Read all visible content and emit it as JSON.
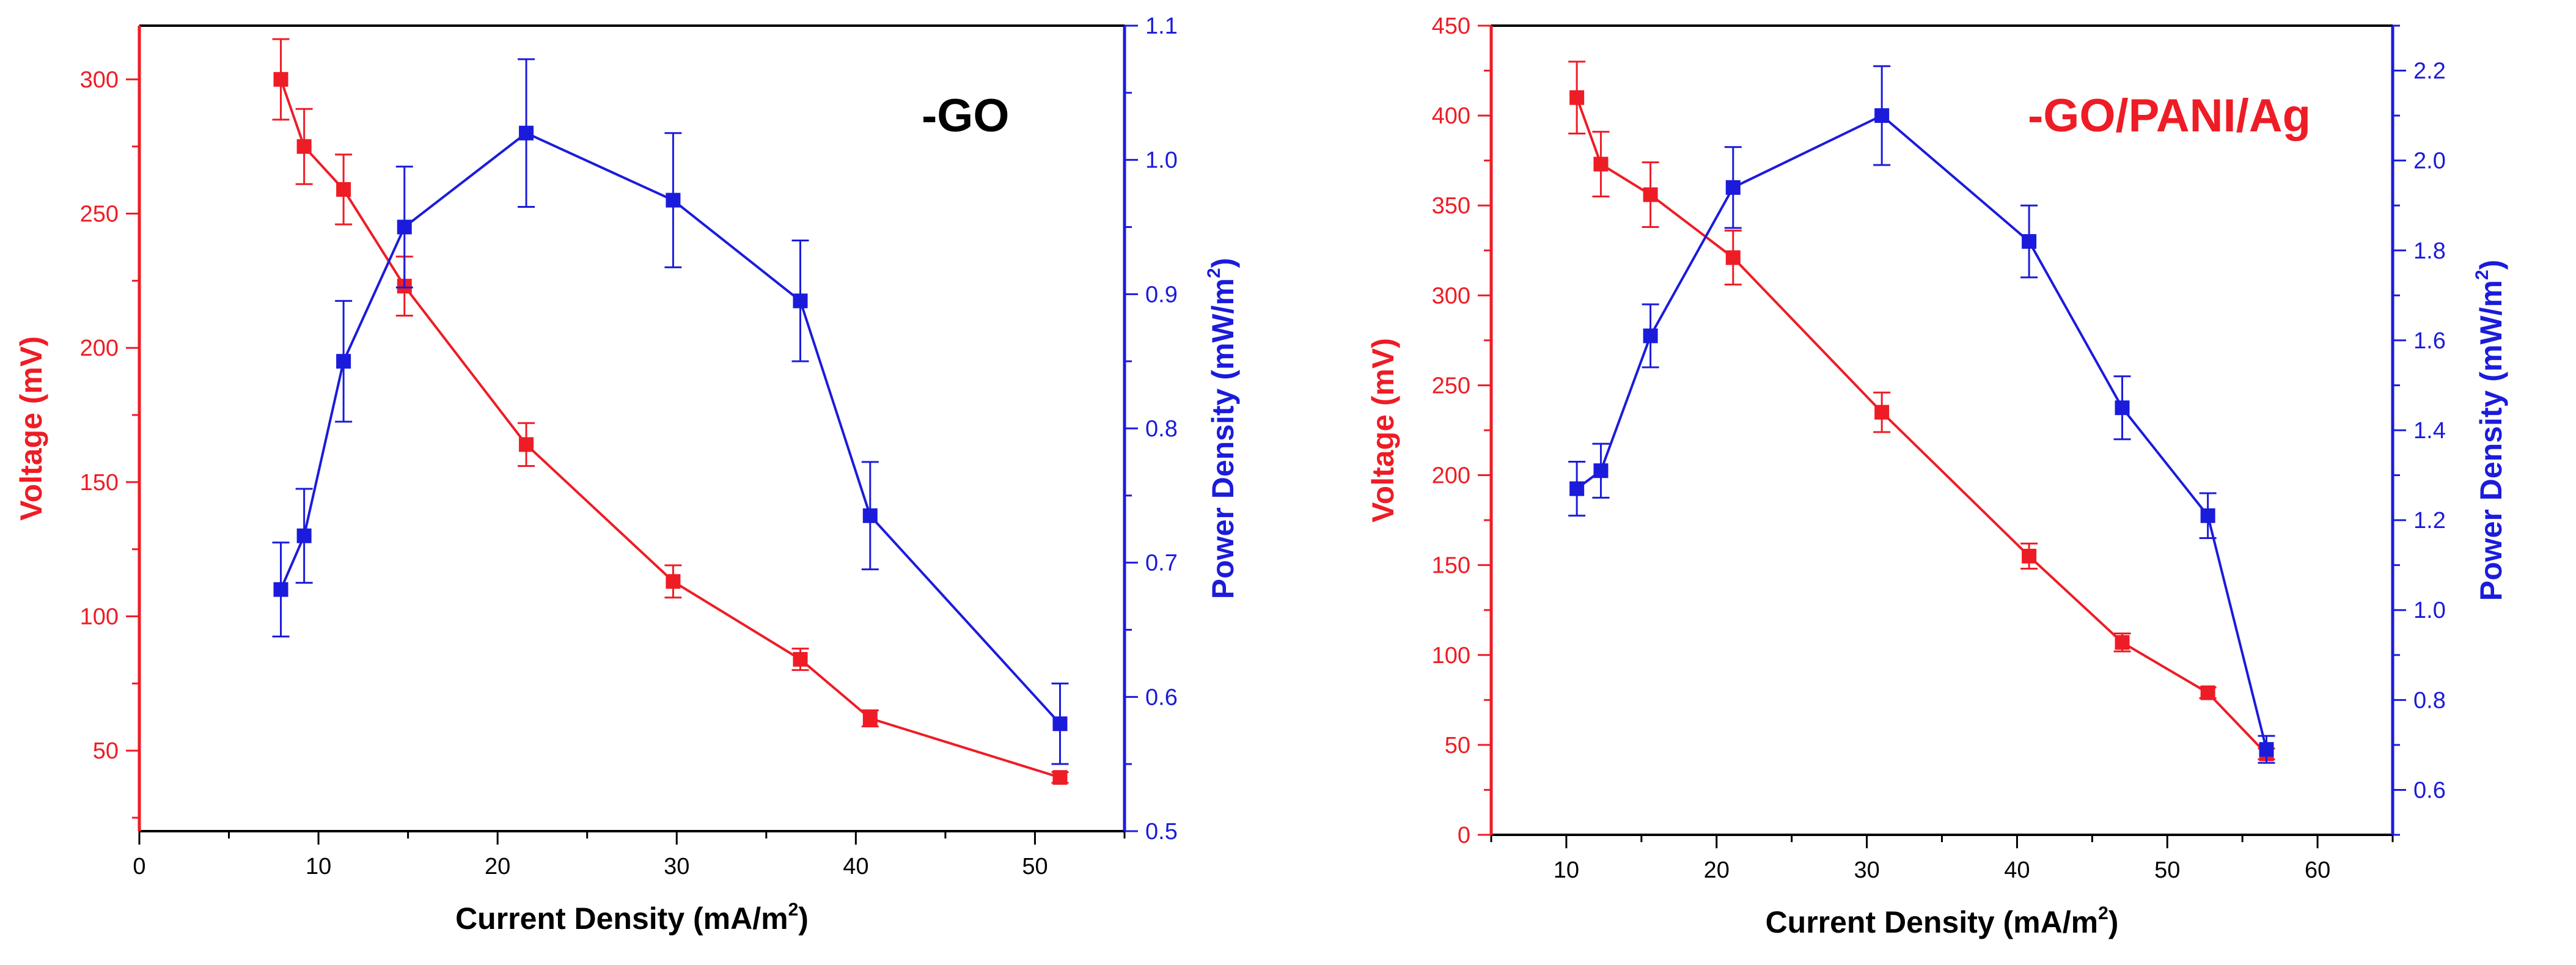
{
  "colors": {
    "voltage": "#ee1c25",
    "power": "#1b1bdc",
    "axis": "#000000"
  },
  "chart_data": [
    {
      "type": "line",
      "title": "-GO",
      "xlabel": "Current Density (mA/m",
      "xlabel_sup": "2",
      "xlabel_close": ")",
      "ylabel_left": "Voltage (mV)",
      "ylabel_right": "Power Density (mW/m",
      "ylabel_right_sup": "2",
      "ylabel_right_close": ")",
      "xlim": [
        0,
        55
      ],
      "ylim_left": [
        20,
        320
      ],
      "ylim_right": [
        0.5,
        1.1
      ],
      "xticks": [
        0,
        10,
        20,
        30,
        40,
        50
      ],
      "yticks_left": [
        50,
        100,
        150,
        200,
        250,
        300
      ],
      "yticks_right": [
        0.5,
        0.6,
        0.7,
        0.8,
        0.9,
        1.0,
        1.1
      ],
      "series": [
        {
          "name": "Voltage",
          "axis": "left",
          "x": [
            7.9,
            9.2,
            11.4,
            14.8,
            21.6,
            29.8,
            36.9,
            40.8,
            51.4
          ],
          "y": [
            300,
            275,
            259,
            223,
            164,
            113,
            84,
            62,
            40
          ],
          "err": [
            15,
            14,
            13,
            11,
            8,
            6,
            4,
            3,
            2
          ]
        },
        {
          "name": "Power Density",
          "axis": "right",
          "x": [
            7.9,
            9.2,
            11.4,
            14.8,
            21.6,
            29.8,
            36.9,
            40.8,
            51.4
          ],
          "y": [
            0.68,
            0.72,
            0.85,
            0.95,
            1.02,
            0.97,
            0.895,
            0.735,
            0.58
          ],
          "err": [
            0.035,
            0.035,
            0.045,
            0.045,
            0.055,
            0.05,
            0.045,
            0.04,
            0.03
          ]
        }
      ]
    },
    {
      "type": "line",
      "title": "-GO/PANI/Ag",
      "xlabel": "Current Density (mA/m",
      "xlabel_sup": "2",
      "xlabel_close": ")",
      "ylabel_left": "Voltage (mV)",
      "ylabel_right": "Power Density (mW/m",
      "ylabel_right_sup": "2",
      "ylabel_right_close": ")",
      "xlim": [
        5,
        65
      ],
      "ylim_left": [
        0,
        450
      ],
      "ylim_right": [
        0.5,
        2.3
      ],
      "xticks": [
        10,
        20,
        30,
        40,
        50,
        60
      ],
      "yticks_left": [
        0,
        50,
        100,
        150,
        200,
        250,
        300,
        350,
        400,
        450
      ],
      "yticks_right": [
        0.6,
        0.8,
        1.0,
        1.2,
        1.4,
        1.6,
        1.8,
        2.0,
        2.2
      ],
      "series": [
        {
          "name": "Voltage",
          "axis": "left",
          "x": [
            10.7,
            12.3,
            15.6,
            21.1,
            31.0,
            40.8,
            47.0,
            52.7,
            56.6
          ],
          "y": [
            410,
            373,
            356,
            321,
            235,
            155,
            107,
            79,
            45
          ],
          "err": [
            20,
            18,
            18,
            15,
            11,
            7,
            5,
            3,
            3
          ]
        },
        {
          "name": "Power Density",
          "axis": "right",
          "x": [
            10.7,
            12.3,
            15.6,
            21.1,
            31.0,
            40.8,
            47.0,
            52.7,
            56.6
          ],
          "y": [
            1.27,
            1.31,
            1.61,
            1.94,
            2.1,
            1.82,
            1.45,
            1.21,
            0.69
          ],
          "err": [
            0.06,
            0.06,
            0.07,
            0.09,
            0.11,
            0.08,
            0.07,
            0.05,
            0.03
          ]
        }
      ]
    }
  ]
}
